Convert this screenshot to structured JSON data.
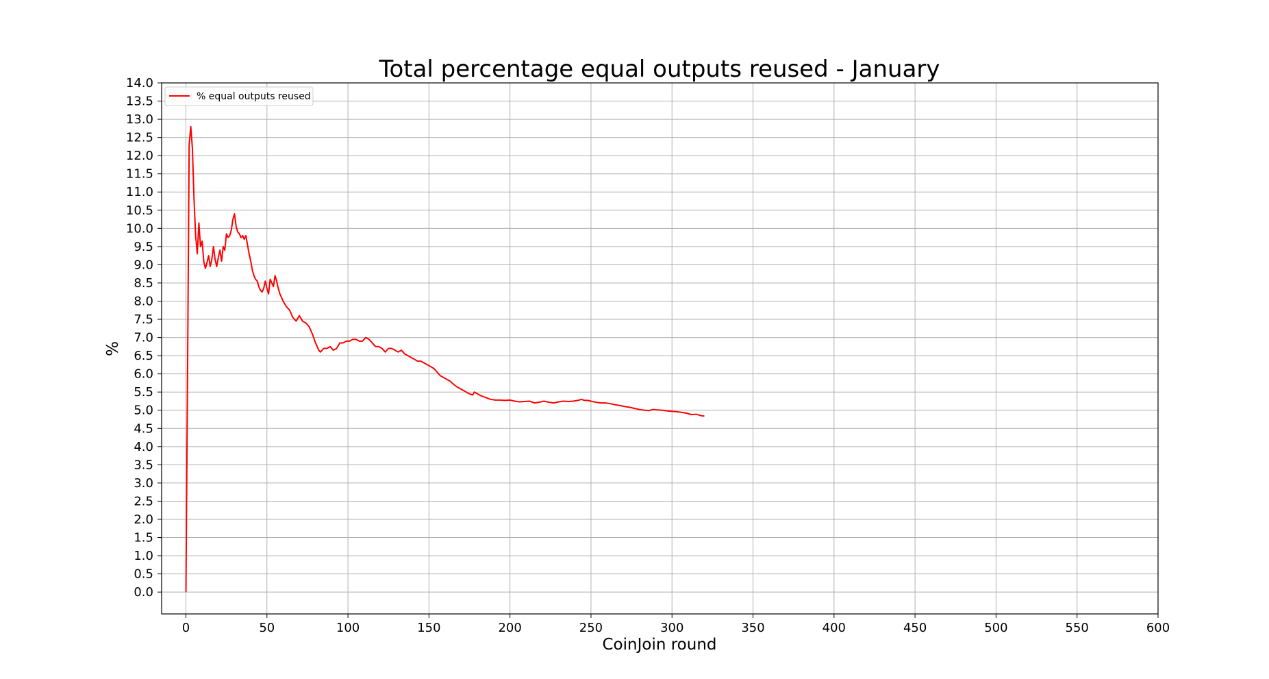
{
  "chart_data": {
    "type": "line",
    "title": "Total percentage equal outputs reused - January",
    "xlabel": "CoinJoin round",
    "ylabel": "%",
    "xlim": [
      -15,
      600
    ],
    "ylim": [
      -0.6,
      14.0
    ],
    "x_ticks": [
      0,
      50,
      100,
      150,
      200,
      250,
      300,
      350,
      400,
      450,
      500,
      550,
      600
    ],
    "y_ticks": [
      0.0,
      0.5,
      1.0,
      1.5,
      2.0,
      2.5,
      3.0,
      3.5,
      4.0,
      4.5,
      5.0,
      5.5,
      6.0,
      6.5,
      7.0,
      7.5,
      8.0,
      8.5,
      9.0,
      9.5,
      10.0,
      10.5,
      11.0,
      11.5,
      12.0,
      12.5,
      13.0,
      13.5,
      14.0
    ],
    "grid": true,
    "legend_position": "top-left",
    "series": [
      {
        "name": "% equal outputs reused",
        "color": "#ff0000",
        "points": [
          [
            0,
            0.0
          ],
          [
            1,
            6.0
          ],
          [
            2,
            12.3
          ],
          [
            3,
            12.8
          ],
          [
            4,
            12.2
          ],
          [
            5,
            10.8
          ],
          [
            6,
            9.8
          ],
          [
            7,
            9.3
          ],
          [
            8,
            10.15
          ],
          [
            9,
            9.5
          ],
          [
            10,
            9.65
          ],
          [
            11,
            9.1
          ],
          [
            12,
            8.9
          ],
          [
            13,
            9.05
          ],
          [
            14,
            9.25
          ],
          [
            15,
            8.95
          ],
          [
            16,
            9.15
          ],
          [
            17,
            9.5
          ],
          [
            18,
            9.15
          ],
          [
            19,
            8.95
          ],
          [
            20,
            9.2
          ],
          [
            21,
            9.4
          ],
          [
            22,
            9.1
          ],
          [
            23,
            9.5
          ],
          [
            24,
            9.4
          ],
          [
            25,
            9.85
          ],
          [
            26,
            9.75
          ],
          [
            27,
            9.8
          ],
          [
            28,
            9.95
          ],
          [
            29,
            10.25
          ],
          [
            30,
            10.4
          ],
          [
            31,
            10.05
          ],
          [
            32,
            9.9
          ],
          [
            33,
            9.85
          ],
          [
            34,
            9.75
          ],
          [
            35,
            9.8
          ],
          [
            36,
            9.7
          ],
          [
            37,
            9.8
          ],
          [
            38,
            9.55
          ],
          [
            39,
            9.3
          ],
          [
            40,
            9.1
          ],
          [
            41,
            8.85
          ],
          [
            42,
            8.7
          ],
          [
            43,
            8.6
          ],
          [
            44,
            8.55
          ],
          [
            45,
            8.4
          ],
          [
            46,
            8.3
          ],
          [
            47,
            8.25
          ],
          [
            48,
            8.35
          ],
          [
            49,
            8.55
          ],
          [
            50,
            8.35
          ],
          [
            51,
            8.2
          ],
          [
            52,
            8.6
          ],
          [
            53,
            8.5
          ],
          [
            54,
            8.4
          ],
          [
            55,
            8.7
          ],
          [
            56,
            8.55
          ],
          [
            57,
            8.35
          ],
          [
            58,
            8.2
          ],
          [
            60,
            8.0
          ],
          [
            62,
            7.85
          ],
          [
            64,
            7.75
          ],
          [
            66,
            7.55
          ],
          [
            68,
            7.45
          ],
          [
            70,
            7.6
          ],
          [
            72,
            7.45
          ],
          [
            74,
            7.4
          ],
          [
            76,
            7.3
          ],
          [
            78,
            7.1
          ],
          [
            80,
            6.85
          ],
          [
            82,
            6.65
          ],
          [
            83,
            6.6
          ],
          [
            85,
            6.7
          ],
          [
            87,
            6.7
          ],
          [
            89,
            6.75
          ],
          [
            91,
            6.65
          ],
          [
            93,
            6.7
          ],
          [
            95,
            6.85
          ],
          [
            97,
            6.85
          ],
          [
            99,
            6.9
          ],
          [
            101,
            6.9
          ],
          [
            103,
            6.95
          ],
          [
            105,
            6.95
          ],
          [
            107,
            6.9
          ],
          [
            109,
            6.9
          ],
          [
            111,
            7.0
          ],
          [
            113,
            6.95
          ],
          [
            115,
            6.85
          ],
          [
            117,
            6.75
          ],
          [
            119,
            6.75
          ],
          [
            121,
            6.7
          ],
          [
            123,
            6.6
          ],
          [
            125,
            6.7
          ],
          [
            127,
            6.7
          ],
          [
            129,
            6.65
          ],
          [
            131,
            6.6
          ],
          [
            133,
            6.65
          ],
          [
            135,
            6.55
          ],
          [
            137,
            6.5
          ],
          [
            139,
            6.45
          ],
          [
            141,
            6.4
          ],
          [
            143,
            6.35
          ],
          [
            145,
            6.35
          ],
          [
            147,
            6.3
          ],
          [
            149,
            6.25
          ],
          [
            151,
            6.2
          ],
          [
            153,
            6.15
          ],
          [
            155,
            6.05
          ],
          [
            157,
            5.95
          ],
          [
            159,
            5.9
          ],
          [
            161,
            5.85
          ],
          [
            163,
            5.8
          ],
          [
            165,
            5.72
          ],
          [
            167,
            5.65
          ],
          [
            169,
            5.6
          ],
          [
            171,
            5.55
          ],
          [
            173,
            5.5
          ],
          [
            175,
            5.45
          ],
          [
            177,
            5.42
          ],
          [
            178,
            5.5
          ],
          [
            180,
            5.45
          ],
          [
            182,
            5.4
          ],
          [
            185,
            5.35
          ],
          [
            188,
            5.3
          ],
          [
            191,
            5.28
          ],
          [
            194,
            5.28
          ],
          [
            197,
            5.27
          ],
          [
            200,
            5.28
          ],
          [
            203,
            5.25
          ],
          [
            206,
            5.23
          ],
          [
            209,
            5.24
          ],
          [
            212,
            5.25
          ],
          [
            215,
            5.2
          ],
          [
            218,
            5.22
          ],
          [
            221,
            5.25
          ],
          [
            224,
            5.22
          ],
          [
            227,
            5.2
          ],
          [
            230,
            5.23
          ],
          [
            233,
            5.25
          ],
          [
            236,
            5.24
          ],
          [
            239,
            5.25
          ],
          [
            242,
            5.27
          ],
          [
            244,
            5.3
          ],
          [
            246,
            5.27
          ],
          [
            248,
            5.27
          ],
          [
            250,
            5.25
          ],
          [
            253,
            5.22
          ],
          [
            256,
            5.2
          ],
          [
            259,
            5.2
          ],
          [
            262,
            5.18
          ],
          [
            265,
            5.15
          ],
          [
            268,
            5.13
          ],
          [
            271,
            5.1
          ],
          [
            274,
            5.08
          ],
          [
            277,
            5.05
          ],
          [
            280,
            5.02
          ],
          [
            283,
            5.0
          ],
          [
            286,
            4.99
          ],
          [
            288,
            5.02
          ],
          [
            291,
            5.01
          ],
          [
            294,
            5.0
          ],
          [
            297,
            4.98
          ],
          [
            300,
            4.97
          ],
          [
            303,
            4.96
          ],
          [
            306,
            4.94
          ],
          [
            309,
            4.92
          ],
          [
            312,
            4.88
          ],
          [
            315,
            4.89
          ],
          [
            318,
            4.85
          ],
          [
            320,
            4.84
          ]
        ]
      }
    ]
  }
}
